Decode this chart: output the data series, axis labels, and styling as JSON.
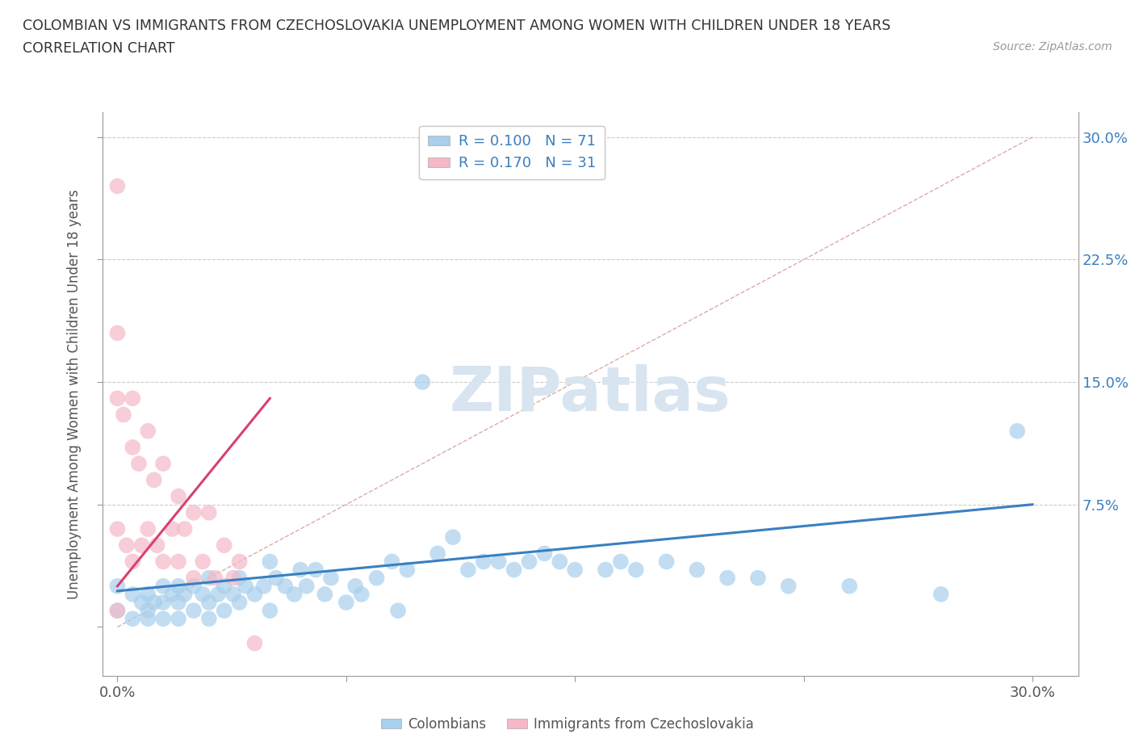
{
  "title_line1": "COLOMBIAN VS IMMIGRANTS FROM CZECHOSLOVAKIA UNEMPLOYMENT AMONG WOMEN WITH CHILDREN UNDER 18 YEARS",
  "title_line2": "CORRELATION CHART",
  "source": "Source: ZipAtlas.com",
  "ylabel": "Unemployment Among Women with Children Under 18 years",
  "xlim": [
    -0.005,
    0.315
  ],
  "ylim": [
    -0.03,
    0.315
  ],
  "xticks": [
    0.0,
    0.075,
    0.15,
    0.225,
    0.3
  ],
  "yticks": [
    0.0,
    0.075,
    0.15,
    0.225,
    0.3
  ],
  "xtick_labels": [
    "0.0%",
    "",
    "",
    "",
    "30.0%"
  ],
  "ytick_labels_right": [
    "",
    "7.5%",
    "15.0%",
    "22.5%",
    "30.0%"
  ],
  "blue_R": 0.1,
  "blue_N": 71,
  "pink_R": 0.17,
  "pink_N": 31,
  "blue_color": "#A8CFEC",
  "pink_color": "#F5B8C8",
  "blue_line_color": "#3A7FC1",
  "pink_line_color": "#D94070",
  "watermark": "ZIPatlas",
  "watermark_color": "#D8E4F0",
  "blue_scatter_x": [
    0.0,
    0.0,
    0.005,
    0.005,
    0.008,
    0.01,
    0.01,
    0.01,
    0.012,
    0.015,
    0.015,
    0.015,
    0.018,
    0.02,
    0.02,
    0.02,
    0.022,
    0.025,
    0.025,
    0.028,
    0.03,
    0.03,
    0.03,
    0.033,
    0.035,
    0.035,
    0.038,
    0.04,
    0.04,
    0.042,
    0.045,
    0.048,
    0.05,
    0.05,
    0.052,
    0.055,
    0.058,
    0.06,
    0.062,
    0.065,
    0.068,
    0.07,
    0.075,
    0.078,
    0.08,
    0.085,
    0.09,
    0.092,
    0.095,
    0.1,
    0.105,
    0.11,
    0.115,
    0.12,
    0.125,
    0.13,
    0.135,
    0.14,
    0.145,
    0.15,
    0.16,
    0.165,
    0.17,
    0.18,
    0.19,
    0.2,
    0.21,
    0.22,
    0.24,
    0.27,
    0.295
  ],
  "blue_scatter_y": [
    0.025,
    0.01,
    0.02,
    0.005,
    0.015,
    0.02,
    0.01,
    0.005,
    0.015,
    0.025,
    0.015,
    0.005,
    0.02,
    0.025,
    0.015,
    0.005,
    0.02,
    0.025,
    0.01,
    0.02,
    0.03,
    0.015,
    0.005,
    0.02,
    0.025,
    0.01,
    0.02,
    0.03,
    0.015,
    0.025,
    0.02,
    0.025,
    0.04,
    0.01,
    0.03,
    0.025,
    0.02,
    0.035,
    0.025,
    0.035,
    0.02,
    0.03,
    0.015,
    0.025,
    0.02,
    0.03,
    0.04,
    0.01,
    0.035,
    0.15,
    0.045,
    0.055,
    0.035,
    0.04,
    0.04,
    0.035,
    0.04,
    0.045,
    0.04,
    0.035,
    0.035,
    0.04,
    0.035,
    0.04,
    0.035,
    0.03,
    0.03,
    0.025,
    0.025,
    0.02,
    0.12
  ],
  "pink_scatter_x": [
    0.0,
    0.0,
    0.0,
    0.0,
    0.0,
    0.002,
    0.003,
    0.005,
    0.005,
    0.005,
    0.007,
    0.008,
    0.01,
    0.01,
    0.012,
    0.013,
    0.015,
    0.015,
    0.018,
    0.02,
    0.02,
    0.022,
    0.025,
    0.025,
    0.028,
    0.03,
    0.032,
    0.035,
    0.038,
    0.04,
    0.045
  ],
  "pink_scatter_y": [
    0.27,
    0.18,
    0.14,
    0.06,
    0.01,
    0.13,
    0.05,
    0.14,
    0.11,
    0.04,
    0.1,
    0.05,
    0.12,
    0.06,
    0.09,
    0.05,
    0.1,
    0.04,
    0.06,
    0.08,
    0.04,
    0.06,
    0.07,
    0.03,
    0.04,
    0.07,
    0.03,
    0.05,
    0.03,
    0.04,
    -0.01
  ],
  "blue_trendline_x": [
    0.0,
    0.3
  ],
  "blue_trendline_y": [
    0.022,
    0.075
  ],
  "pink_trendline_x": [
    0.0,
    0.05
  ],
  "pink_trendline_y": [
    0.025,
    0.14
  ]
}
